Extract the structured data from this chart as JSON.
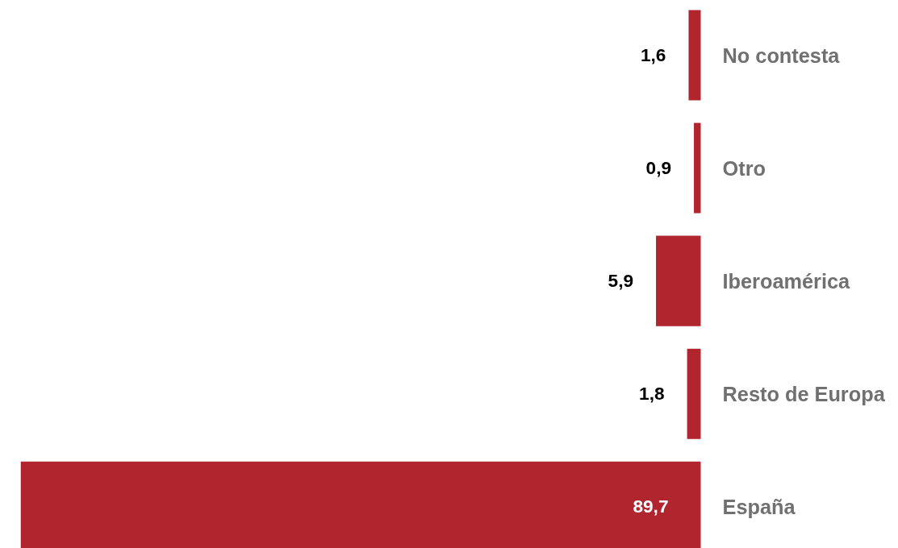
{
  "chart_data": {
    "type": "bar",
    "orientation": "horizontal",
    "categories": [
      "No contesta",
      "Otro",
      "Iberoamérica",
      "Resto de Europa",
      "España"
    ],
    "values": [
      1.6,
      0.9,
      5.9,
      1.8,
      89.7
    ],
    "value_labels": [
      "1,6",
      "0,9",
      "5,9",
      "1,8",
      "89,7"
    ],
    "color": "#b1262e",
    "grid": false
  }
}
